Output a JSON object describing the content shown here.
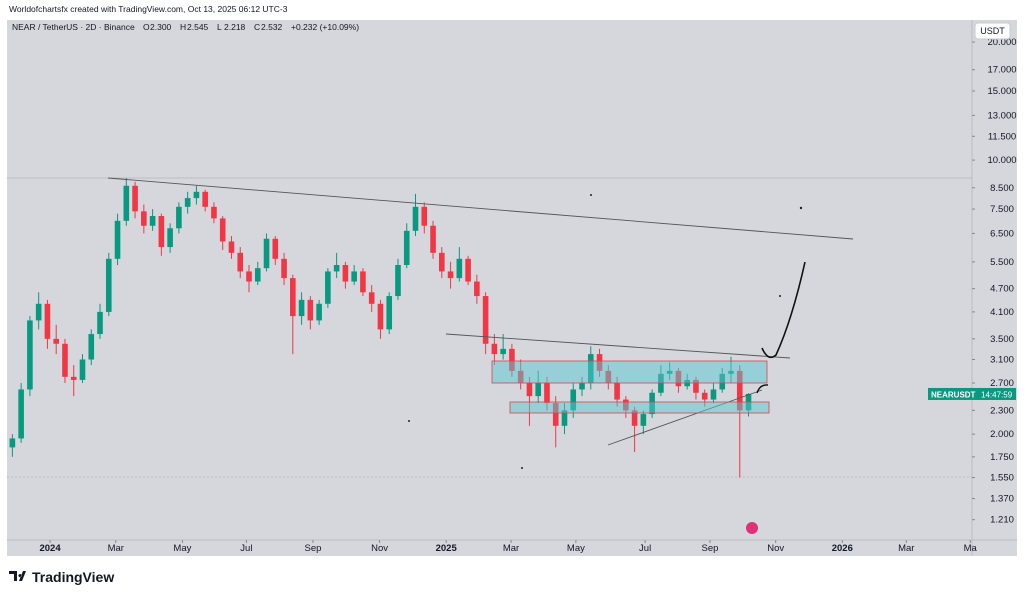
{
  "header": {
    "credit": "Worldofchartsfx created with TradingView.com, Oct 13, 2025 06:12 UTC-3",
    "symbol": "NEAR / TetherUS · 2D · Binance",
    "ohlc": [
      {
        "key": "O",
        "value": "2.300"
      },
      {
        "key": "H",
        "value": "2.545"
      },
      {
        "key": "L",
        "value": "2.218"
      },
      {
        "key": "C",
        "value": "2.532"
      }
    ],
    "change": "+0.232 (+10.09%)"
  },
  "currency_button": "USDT",
  "price_label": {
    "symbol": "NEARUSDT",
    "countdown": "14:47:59"
  },
  "logo": "TradingView",
  "chart_data": {
    "type": "candlestick",
    "log_scale": true,
    "up_color": "#089981",
    "down_color": "#f23645",
    "candles": [
      [
        1.85,
        2.0,
        1.75,
        1.95
      ],
      [
        1.95,
        2.7,
        1.9,
        2.6
      ],
      [
        2.6,
        4.0,
        2.5,
        3.9
      ],
      [
        3.9,
        4.6,
        3.7,
        4.3
      ],
      [
        4.3,
        4.4,
        3.3,
        3.5
      ],
      [
        3.5,
        3.8,
        3.2,
        3.4
      ],
      [
        3.4,
        3.5,
        2.7,
        2.8
      ],
      [
        2.8,
        3.0,
        2.5,
        2.75
      ],
      [
        2.75,
        3.2,
        2.7,
        3.1
      ],
      [
        3.1,
        3.7,
        3.0,
        3.6
      ],
      [
        3.6,
        4.3,
        3.5,
        4.1
      ],
      [
        4.1,
        5.8,
        4.0,
        5.6
      ],
      [
        5.6,
        7.3,
        5.4,
        7.0
      ],
      [
        7.0,
        9.0,
        6.8,
        8.6
      ],
      [
        8.6,
        8.8,
        7.1,
        7.4
      ],
      [
        7.4,
        7.7,
        6.5,
        6.8
      ],
      [
        6.8,
        7.5,
        6.6,
        7.2
      ],
      [
        7.2,
        7.3,
        5.7,
        6.0
      ],
      [
        6.0,
        6.9,
        5.8,
        6.7
      ],
      [
        6.7,
        7.8,
        6.5,
        7.6
      ],
      [
        7.6,
        8.3,
        7.3,
        8.0
      ],
      [
        8.0,
        8.6,
        7.7,
        8.3
      ],
      [
        8.3,
        8.4,
        7.4,
        7.6
      ],
      [
        7.6,
        7.8,
        6.9,
        7.1
      ],
      [
        7.1,
        7.2,
        5.9,
        6.2
      ],
      [
        6.2,
        6.4,
        5.6,
        5.8
      ],
      [
        5.8,
        6.0,
        5.0,
        5.2
      ],
      [
        5.2,
        5.4,
        4.6,
        4.9
      ],
      [
        4.9,
        5.5,
        4.8,
        5.3
      ],
      [
        5.3,
        6.5,
        5.2,
        6.3
      ],
      [
        6.3,
        6.4,
        5.4,
        5.6
      ],
      [
        5.6,
        5.8,
        4.8,
        5.0
      ],
      [
        5.0,
        5.1,
        3.2,
        4.0
      ],
      [
        4.0,
        4.6,
        3.8,
        4.4
      ],
      [
        4.4,
        4.5,
        3.7,
        3.9
      ],
      [
        3.9,
        4.4,
        3.8,
        4.3
      ],
      [
        4.3,
        5.3,
        4.2,
        5.2
      ],
      [
        5.2,
        5.8,
        5.0,
        5.4
      ],
      [
        5.4,
        5.5,
        4.7,
        4.9
      ],
      [
        4.9,
        5.4,
        4.8,
        5.2
      ],
      [
        5.2,
        5.3,
        4.5,
        4.6
      ],
      [
        4.6,
        4.8,
        4.1,
        4.3
      ],
      [
        4.3,
        4.4,
        3.5,
        3.7
      ],
      [
        3.7,
        4.6,
        3.6,
        4.5
      ],
      [
        4.5,
        5.6,
        4.4,
        5.4
      ],
      [
        5.4,
        6.9,
        5.3,
        6.6
      ],
      [
        6.6,
        8.2,
        6.4,
        7.6
      ],
      [
        7.6,
        7.8,
        6.5,
        6.8
      ],
      [
        6.8,
        7.0,
        5.6,
        5.8
      ],
      [
        5.8,
        6.0,
        5.0,
        5.2
      ],
      [
        5.2,
        5.5,
        4.7,
        5.0
      ],
      [
        5.0,
        6.0,
        4.9,
        5.6
      ],
      [
        5.6,
        5.7,
        4.8,
        4.9
      ],
      [
        4.9,
        5.1,
        4.3,
        4.5
      ],
      [
        4.5,
        4.6,
        3.2,
        3.4
      ],
      [
        3.4,
        3.6,
        3.0,
        3.2
      ],
      [
        3.2,
        3.6,
        3.1,
        3.3
      ],
      [
        3.3,
        3.4,
        2.8,
        2.9
      ],
      [
        2.9,
        3.1,
        2.6,
        2.7
      ],
      [
        2.7,
        2.8,
        2.1,
        2.5
      ],
      [
        2.5,
        2.9,
        2.4,
        2.7
      ],
      [
        2.7,
        2.8,
        2.3,
        2.4
      ],
      [
        2.4,
        2.5,
        1.85,
        2.1
      ],
      [
        2.1,
        2.4,
        2.0,
        2.3
      ],
      [
        2.3,
        2.7,
        2.2,
        2.6
      ],
      [
        2.6,
        2.8,
        2.5,
        2.7
      ],
      [
        2.7,
        3.35,
        2.6,
        3.2
      ],
      [
        3.2,
        3.3,
        2.8,
        2.9
      ],
      [
        2.9,
        3.0,
        2.6,
        2.7
      ],
      [
        2.7,
        2.8,
        2.35,
        2.45
      ],
      [
        2.45,
        2.5,
        2.2,
        2.3
      ],
      [
        2.3,
        2.35,
        1.8,
        2.1
      ],
      [
        2.1,
        2.3,
        2.0,
        2.25
      ],
      [
        2.25,
        2.6,
        2.2,
        2.55
      ],
      [
        2.55,
        3.0,
        2.5,
        2.85
      ],
      [
        2.85,
        3.05,
        2.75,
        2.9
      ],
      [
        2.9,
        2.95,
        2.55,
        2.65
      ],
      [
        2.65,
        2.85,
        2.6,
        2.75
      ],
      [
        2.75,
        2.8,
        2.45,
        2.55
      ],
      [
        2.55,
        2.6,
        2.35,
        2.45
      ],
      [
        2.45,
        2.7,
        2.4,
        2.6
      ],
      [
        2.6,
        2.95,
        2.55,
        2.85
      ],
      [
        2.85,
        3.15,
        2.7,
        2.9
      ],
      [
        2.9,
        3.0,
        1.55,
        2.3
      ],
      [
        2.3,
        2.545,
        2.218,
        2.532
      ]
    ],
    "ylim": [
      1.074,
      22.5
    ],
    "yticks": [
      {
        "value": 20,
        "label": "20.000"
      },
      {
        "value": 17,
        "label": "17.000"
      },
      {
        "value": 15,
        "label": "15.000"
      },
      {
        "value": 13,
        "label": "13.000"
      },
      {
        "value": 11.5,
        "label": "11.500"
      },
      {
        "value": 10,
        "label": "10.000"
      },
      {
        "value": 8.5,
        "label": "8.500"
      },
      {
        "value": 7.5,
        "label": "7.500"
      },
      {
        "value": 6.5,
        "label": "6.500"
      },
      {
        "value": 5.5,
        "label": "5.500"
      },
      {
        "value": 4.7,
        "label": "4.700"
      },
      {
        "value": 4.1,
        "label": "4.100"
      },
      {
        "value": 3.5,
        "label": "3.500"
      },
      {
        "value": 3.1,
        "label": "3.100"
      },
      {
        "value": 2.7,
        "label": "2.700"
      },
      {
        "value": 2.3,
        "label": "2.300"
      },
      {
        "value": 2,
        "label": "2.000"
      },
      {
        "value": 1.75,
        "label": "1.750"
      },
      {
        "value": 1.55,
        "label": "1.550"
      },
      {
        "value": 1.37,
        "label": "1.370"
      },
      {
        "value": 1.21,
        "label": "1.210"
      }
    ],
    "xlim": [
      0,
      110
    ],
    "xticks": [
      {
        "value": 4.8,
        "label": "2024"
      },
      {
        "value": 12.3,
        "label": "Mar"
      },
      {
        "value": 19.9,
        "label": "May"
      },
      {
        "value": 27.2,
        "label": "Jul"
      },
      {
        "value": 34.8,
        "label": "Sep"
      },
      {
        "value": 42.4,
        "label": "Nov"
      },
      {
        "value": 50,
        "label": "2025"
      },
      {
        "value": 57.4,
        "label": "Mar"
      },
      {
        "value": 64.8,
        "label": "May"
      },
      {
        "value": 72.7,
        "label": "Jul"
      },
      {
        "value": 80.1,
        "label": "Sep"
      },
      {
        "value": 87.6,
        "label": "Nov"
      },
      {
        "value": 95.2,
        "label": "2026"
      },
      {
        "value": 102.5,
        "label": "Mar"
      },
      {
        "value": 109.8,
        "label": "Ma"
      }
    ]
  }
}
